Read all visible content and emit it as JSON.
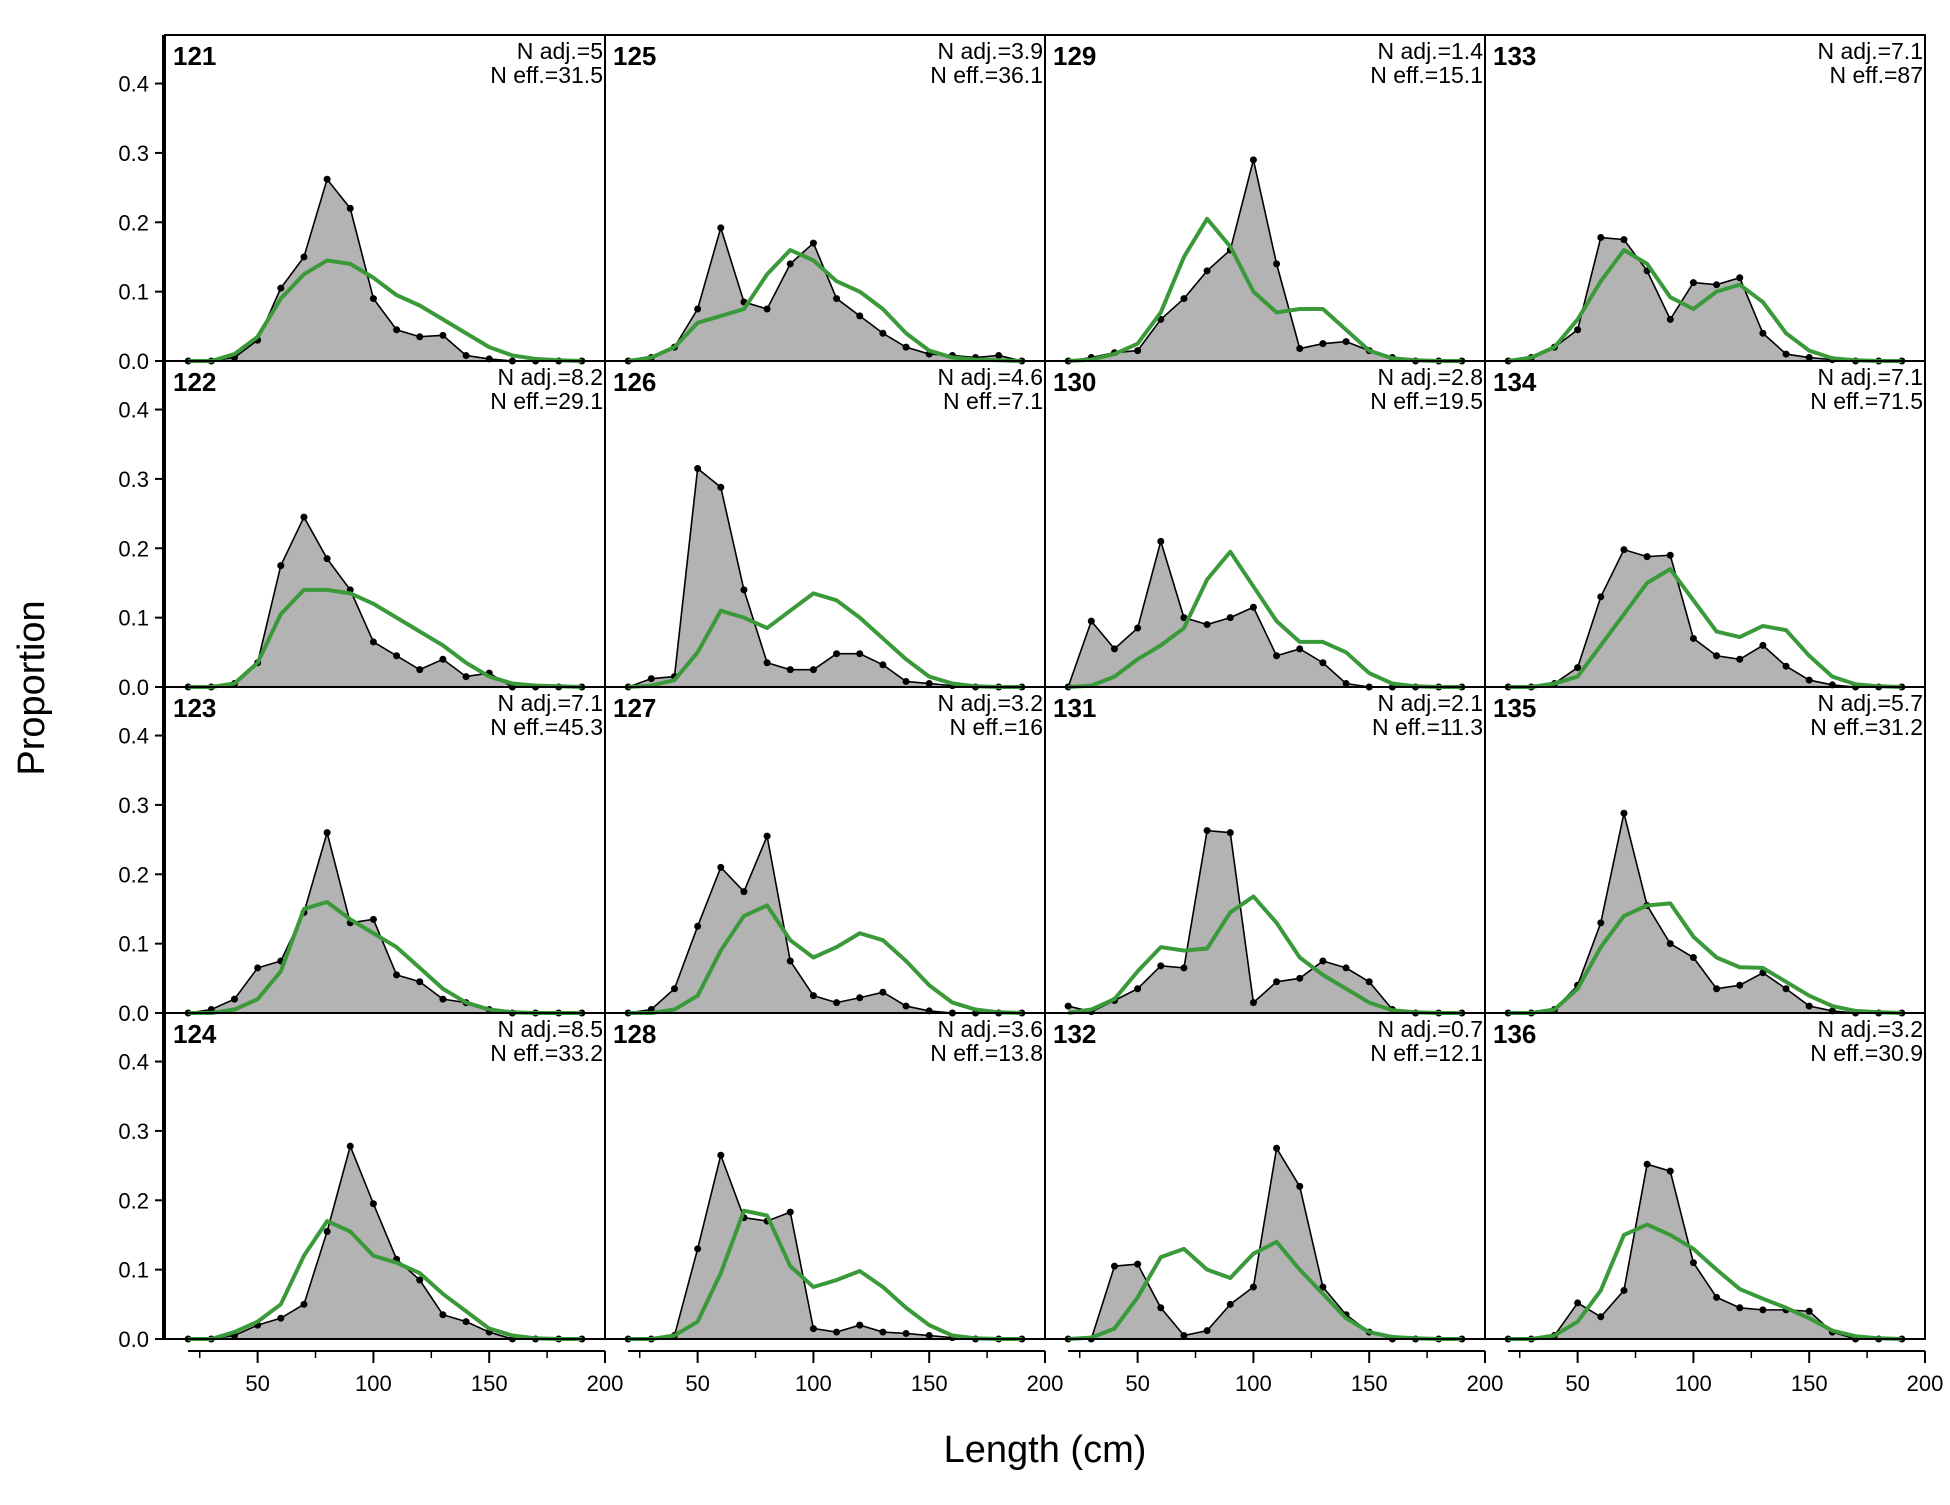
{
  "chart_data": {
    "type": "area",
    "xlabel": "Length (cm)",
    "ylabel": "Proportion",
    "xlim": [
      10,
      200
    ],
    "ylim": [
      0,
      0.47
    ],
    "x_ticks": [
      50,
      100,
      150,
      200
    ],
    "y_ticks": [
      0.0,
      0.1,
      0.2,
      0.3,
      0.4
    ],
    "x_tick_labels": [
      "50",
      "100",
      "150",
      "200"
    ],
    "y_tick_labels": [
      "0.0",
      "0.1",
      "0.2",
      "0.3",
      "0.4"
    ],
    "grid": false,
    "layout": "4 rows x 4 columns, panels ordered down columns",
    "length_bins": [
      20,
      30,
      40,
      50,
      60,
      70,
      80,
      90,
      100,
      110,
      120,
      130,
      140,
      150,
      160,
      170,
      180,
      190
    ],
    "colors": {
      "observed_fill": "#b3b3b3",
      "observed_line": "#000000",
      "expected_line": "#3a9a3a",
      "zero_line": "#c0c0c0"
    },
    "series_labels": {},
    "panels": [
      {
        "id": "121",
        "n_adj": "N adj.=5",
        "n_eff": "N eff.=31.5",
        "observed": [
          0,
          0,
          0.005,
          0.03,
          0.105,
          0.15,
          0.262,
          0.22,
          0.09,
          0.045,
          0.035,
          0.037,
          0.008,
          0.003,
          0,
          0,
          0,
          0
        ],
        "expected": [
          0,
          0,
          0.01,
          0.035,
          0.09,
          0.125,
          0.145,
          0.14,
          0.12,
          0.095,
          0.08,
          0.06,
          0.04,
          0.02,
          0.008,
          0.003,
          0.001,
          0
        ]
      },
      {
        "id": "122",
        "n_adj": "N adj.=8.2",
        "n_eff": "N eff.=29.1",
        "observed": [
          0,
          0,
          0.005,
          0.035,
          0.175,
          0.245,
          0.185,
          0.14,
          0.065,
          0.045,
          0.025,
          0.04,
          0.015,
          0.02,
          0,
          0,
          0,
          0
        ],
        "expected": [
          0,
          0,
          0.005,
          0.035,
          0.105,
          0.14,
          0.14,
          0.135,
          0.12,
          0.1,
          0.08,
          0.06,
          0.035,
          0.015,
          0.005,
          0.002,
          0.001,
          0
        ]
      },
      {
        "id": "123",
        "n_adj": "N adj.=7.1",
        "n_eff": "N eff.=45.3",
        "observed": [
          0,
          0.005,
          0.02,
          0.065,
          0.075,
          0.145,
          0.26,
          0.13,
          0.135,
          0.055,
          0.045,
          0.02,
          0.015,
          0.005,
          0,
          0,
          0,
          0
        ],
        "expected": [
          0,
          0,
          0.005,
          0.02,
          0.06,
          0.15,
          0.16,
          0.135,
          0.115,
          0.095,
          0.065,
          0.035,
          0.015,
          0.005,
          0.001,
          0,
          0,
          0
        ]
      },
      {
        "id": "124",
        "n_adj": "N adj.=8.5",
        "n_eff": "N eff.=33.2",
        "observed": [
          0,
          0,
          0.005,
          0.02,
          0.03,
          0.05,
          0.155,
          0.278,
          0.195,
          0.115,
          0.085,
          0.035,
          0.025,
          0.01,
          0,
          0,
          0,
          0
        ],
        "expected": [
          0,
          0,
          0.01,
          0.025,
          0.05,
          0.12,
          0.17,
          0.155,
          0.12,
          0.11,
          0.095,
          0.065,
          0.04,
          0.015,
          0.005,
          0.001,
          0,
          0
        ]
      },
      {
        "id": "125",
        "n_adj": "N adj.=3.9",
        "n_eff": "N eff.=36.1",
        "observed": [
          0,
          0.005,
          0.02,
          0.075,
          0.192,
          0.085,
          0.075,
          0.14,
          0.17,
          0.09,
          0.065,
          0.04,
          0.02,
          0.01,
          0.008,
          0.005,
          0.008,
          0
        ],
        "expected": [
          0,
          0.005,
          0.02,
          0.055,
          0.065,
          0.075,
          0.125,
          0.16,
          0.145,
          0.115,
          0.1,
          0.075,
          0.04,
          0.015,
          0.005,
          0.002,
          0.001,
          0
        ]
      },
      {
        "id": "126",
        "n_adj": "N adj.=4.6",
        "n_eff": "N eff.=7.1",
        "observed": [
          0,
          0.012,
          0.015,
          0.315,
          0.288,
          0.14,
          0.035,
          0.025,
          0.025,
          0.048,
          0.048,
          0.032,
          0.008,
          0.005,
          0.002,
          0,
          0,
          0
        ],
        "expected": [
          0,
          0.002,
          0.01,
          0.05,
          0.11,
          0.1,
          0.085,
          0.11,
          0.135,
          0.125,
          0.1,
          0.07,
          0.04,
          0.015,
          0.005,
          0.001,
          0,
          0
        ]
      },
      {
        "id": "127",
        "n_adj": "N adj.=3.2",
        "n_eff": "N eff.=16",
        "observed": [
          0,
          0.005,
          0.035,
          0.125,
          0.21,
          0.175,
          0.255,
          0.075,
          0.025,
          0.015,
          0.022,
          0.03,
          0.01,
          0.003,
          0,
          0,
          0,
          0
        ],
        "expected": [
          0,
          0,
          0.005,
          0.025,
          0.09,
          0.14,
          0.155,
          0.105,
          0.08,
          0.095,
          0.115,
          0.105,
          0.075,
          0.04,
          0.015,
          0.005,
          0.001,
          0
        ]
      },
      {
        "id": "128",
        "n_adj": "N adj.=3.6",
        "n_eff": "N eff.=13.8",
        "observed": [
          0,
          0,
          0.005,
          0.13,
          0.265,
          0.175,
          0.17,
          0.183,
          0.015,
          0.01,
          0.02,
          0.01,
          0.008,
          0.005,
          0.002,
          0,
          0,
          0
        ],
        "expected": [
          0,
          0,
          0.005,
          0.025,
          0.095,
          0.185,
          0.178,
          0.105,
          0.075,
          0.085,
          0.098,
          0.075,
          0.045,
          0.02,
          0.005,
          0.001,
          0,
          0
        ]
      },
      {
        "id": "129",
        "n_adj": "N adj.=1.4",
        "n_eff": "N eff.=15.1",
        "observed": [
          0,
          0.005,
          0.012,
          0.015,
          0.06,
          0.09,
          0.13,
          0.16,
          0.29,
          0.14,
          0.018,
          0.025,
          0.028,
          0.015,
          0.005,
          0,
          0,
          0
        ],
        "expected": [
          0,
          0.002,
          0.01,
          0.025,
          0.07,
          0.15,
          0.205,
          0.165,
          0.1,
          0.07,
          0.075,
          0.075,
          0.045,
          0.015,
          0.004,
          0.001,
          0,
          0
        ]
      },
      {
        "id": "130",
        "n_adj": "N adj.=2.8",
        "n_eff": "N eff.=19.5",
        "observed": [
          0,
          0.095,
          0.055,
          0.085,
          0.21,
          0.1,
          0.09,
          0.1,
          0.115,
          0.045,
          0.055,
          0.035,
          0.005,
          0,
          0,
          0,
          0,
          0
        ],
        "expected": [
          0,
          0.002,
          0.015,
          0.04,
          0.06,
          0.085,
          0.155,
          0.195,
          0.145,
          0.095,
          0.065,
          0.065,
          0.05,
          0.02,
          0.005,
          0.001,
          0,
          0
        ]
      },
      {
        "id": "131",
        "n_adj": "N adj.=2.1",
        "n_eff": "N eff.=11.3",
        "observed": [
          0.01,
          0.002,
          0.018,
          0.035,
          0.068,
          0.065,
          0.263,
          0.26,
          0.015,
          0.045,
          0.05,
          0.075,
          0.065,
          0.045,
          0.005,
          0,
          0,
          0
        ],
        "expected": [
          0,
          0.005,
          0.02,
          0.06,
          0.095,
          0.09,
          0.093,
          0.145,
          0.168,
          0.13,
          0.08,
          0.055,
          0.035,
          0.015,
          0.004,
          0.001,
          0,
          0
        ]
      },
      {
        "id": "132",
        "n_adj": "N adj.=0.7",
        "n_eff": "N eff.=12.1",
        "observed": [
          0,
          0,
          0.105,
          0.108,
          0.045,
          0.005,
          0.012,
          0.05,
          0.075,
          0.275,
          0.22,
          0.075,
          0.035,
          0.01,
          0,
          0,
          0,
          0
        ],
        "expected": [
          0,
          0.002,
          0.015,
          0.06,
          0.118,
          0.13,
          0.1,
          0.088,
          0.123,
          0.14,
          0.1,
          0.065,
          0.03,
          0.01,
          0.003,
          0.001,
          0,
          0
        ]
      },
      {
        "id": "133",
        "n_adj": "N adj.=7.1",
        "n_eff": "N eff.=87",
        "observed": [
          0,
          0.005,
          0.02,
          0.045,
          0.178,
          0.175,
          0.13,
          0.06,
          0.113,
          0.11,
          0.12,
          0.04,
          0.01,
          0.005,
          0.002,
          0,
          0,
          0
        ],
        "expected": [
          0,
          0.005,
          0.02,
          0.06,
          0.115,
          0.16,
          0.14,
          0.092,
          0.075,
          0.1,
          0.11,
          0.085,
          0.04,
          0.015,
          0.004,
          0.001,
          0,
          0
        ]
      },
      {
        "id": "134",
        "n_adj": "N adj.=7.1",
        "n_eff": "N eff.=71.5",
        "observed": [
          0,
          0,
          0.005,
          0.028,
          0.13,
          0.198,
          0.188,
          0.19,
          0.07,
          0.045,
          0.04,
          0.06,
          0.03,
          0.01,
          0.003,
          0,
          0,
          0
        ],
        "expected": [
          0,
          0,
          0.005,
          0.015,
          0.06,
          0.105,
          0.15,
          0.17,
          0.125,
          0.08,
          0.072,
          0.088,
          0.082,
          0.045,
          0.015,
          0.004,
          0.001,
          0
        ]
      },
      {
        "id": "135",
        "n_adj": "N adj.=5.7",
        "n_eff": "N eff.=31.2",
        "observed": [
          0,
          0,
          0.005,
          0.04,
          0.13,
          0.288,
          0.155,
          0.1,
          0.08,
          0.035,
          0.04,
          0.058,
          0.035,
          0.01,
          0.003,
          0,
          0,
          0
        ],
        "expected": [
          0,
          0,
          0.005,
          0.035,
          0.095,
          0.14,
          0.155,
          0.158,
          0.11,
          0.08,
          0.066,
          0.065,
          0.045,
          0.025,
          0.01,
          0.003,
          0.001,
          0
        ]
      },
      {
        "id": "136",
        "n_adj": "N adj.=3.2",
        "n_eff": "N eff.=30.9",
        "observed": [
          0,
          0,
          0.005,
          0.052,
          0.032,
          0.07,
          0.252,
          0.242,
          0.11,
          0.06,
          0.045,
          0.042,
          0.042,
          0.04,
          0.01,
          0,
          0,
          0
        ],
        "expected": [
          0,
          0,
          0.005,
          0.025,
          0.07,
          0.15,
          0.165,
          0.15,
          0.13,
          0.1,
          0.072,
          0.058,
          0.045,
          0.03,
          0.012,
          0.004,
          0.001,
          0
        ]
      }
    ]
  }
}
